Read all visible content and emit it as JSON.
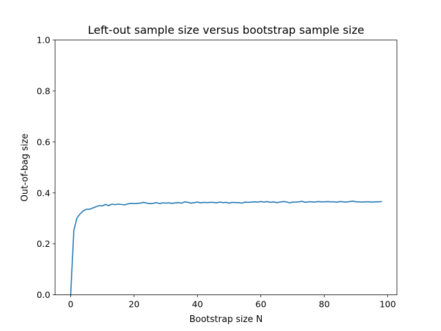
{
  "chart_data": {
    "type": "line",
    "title": "Left-out sample size versus bootstrap sample size",
    "xlabel": "Bootstrap size N",
    "ylabel": "Out-of-bag size",
    "xlim": [
      -4.9,
      102.9
    ],
    "ylim": [
      0.0,
      1.0
    ],
    "xticks": [
      0,
      20,
      40,
      60,
      80,
      100
    ],
    "xtick_labels": [
      "0",
      "20",
      "40",
      "60",
      "80",
      "100"
    ],
    "yticks": [
      0.0,
      0.2,
      0.4,
      0.6,
      0.8,
      1.0
    ],
    "ytick_labels": [
      "0.0",
      "0.2",
      "0.4",
      "0.6",
      "0.8",
      "1.0"
    ],
    "grid": false,
    "legend": null,
    "series": [
      {
        "color": "#1f77b4",
        "x": [
          0,
          1,
          2,
          3,
          4,
          5,
          6,
          7,
          8,
          9,
          10,
          11,
          12,
          13,
          14,
          15,
          16,
          17,
          18,
          19,
          20,
          21,
          22,
          23,
          24,
          25,
          26,
          27,
          28,
          29,
          30,
          31,
          32,
          33,
          34,
          35,
          36,
          37,
          38,
          39,
          40,
          41,
          42,
          43,
          44,
          45,
          46,
          47,
          48,
          49,
          50,
          51,
          52,
          53,
          54,
          55,
          56,
          57,
          58,
          59,
          60,
          61,
          62,
          63,
          64,
          65,
          66,
          67,
          68,
          69,
          70,
          71,
          72,
          73,
          74,
          75,
          76,
          77,
          78,
          79,
          80,
          81,
          82,
          83,
          84,
          85,
          86,
          87,
          88,
          89,
          90,
          91,
          92,
          93,
          94,
          95,
          96,
          97,
          98
        ],
        "y": [
          0.0,
          0.253,
          0.302,
          0.318,
          0.33,
          0.336,
          0.336,
          0.341,
          0.346,
          0.35,
          0.349,
          0.355,
          0.35,
          0.356,
          0.354,
          0.356,
          0.355,
          0.353,
          0.357,
          0.359,
          0.358,
          0.359,
          0.36,
          0.363,
          0.36,
          0.358,
          0.359,
          0.362,
          0.358,
          0.361,
          0.36,
          0.361,
          0.359,
          0.361,
          0.362,
          0.36,
          0.365,
          0.363,
          0.36,
          0.362,
          0.364,
          0.361,
          0.363,
          0.362,
          0.363,
          0.363,
          0.361,
          0.364,
          0.362,
          0.363,
          0.36,
          0.363,
          0.362,
          0.362,
          0.36,
          0.364,
          0.363,
          0.364,
          0.365,
          0.364,
          0.366,
          0.364,
          0.366,
          0.363,
          0.365,
          0.362,
          0.364,
          0.366,
          0.365,
          0.361,
          0.364,
          0.364,
          0.365,
          0.367,
          0.363,
          0.365,
          0.365,
          0.364,
          0.366,
          0.365,
          0.365,
          0.366,
          0.365,
          0.365,
          0.364,
          0.366,
          0.365,
          0.364,
          0.366,
          0.368,
          0.365,
          0.365,
          0.364,
          0.365,
          0.365,
          0.364,
          0.365,
          0.365,
          0.366
        ]
      }
    ]
  }
}
